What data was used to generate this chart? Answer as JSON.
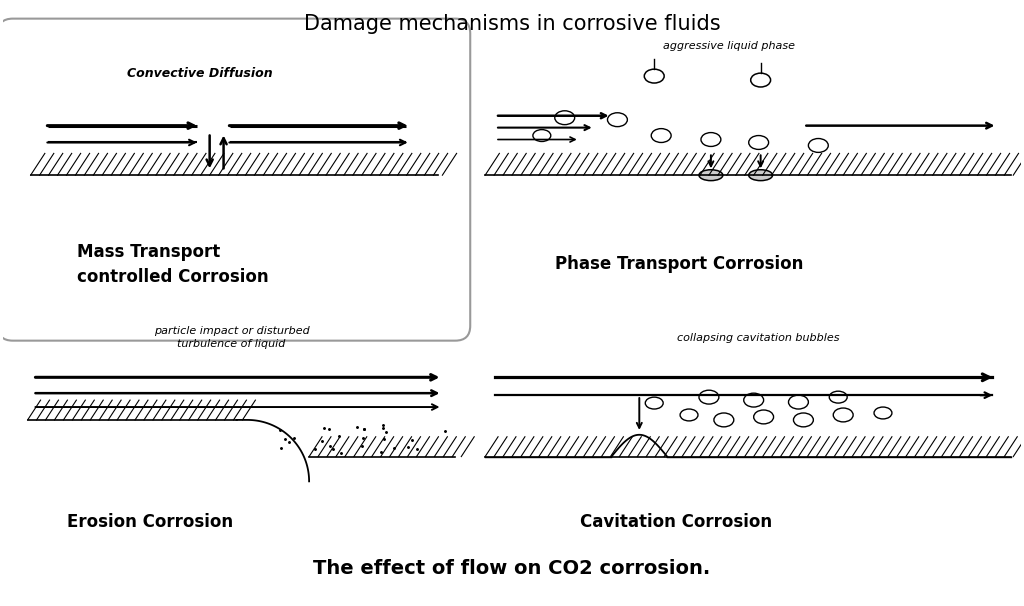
{
  "title": "Damage mechanisms in corrosive fluids",
  "subtitle": "The effect of flow on CO2 corrosion.",
  "bg_color": "#ffffff",
  "text_color": "#000000",
  "label_tl": "Mass Transport\ncontrolled Corrosion",
  "label_tr": "Phase Transport Corrosion",
  "label_bl": "Erosion Corrosion",
  "label_br": "Cavitation Corrosion",
  "sublabel_tl": "Convective Diffusion",
  "sublabel_tr": "aggressive liquid phase",
  "sublabel_bl": "particle impact or disturbed\nturbulence of liquid",
  "sublabel_br": "collapsing cavitation bubbles",
  "hatch_color": "#000000",
  "box_edge_color": "#999999",
  "title_fontsize": 15,
  "subtitle_fontsize": 14,
  "label_fontsize": 11,
  "sublabel_fontsize": 8
}
